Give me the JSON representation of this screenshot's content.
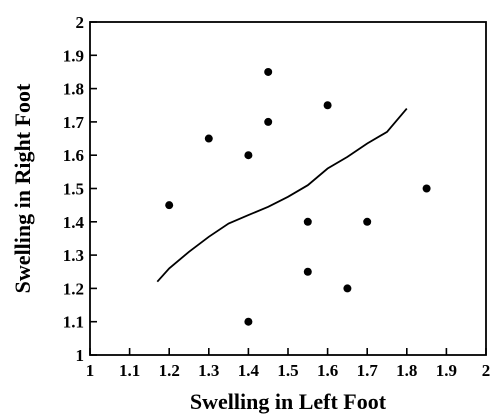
{
  "chart_data": {
    "type": "scatter",
    "title": "",
    "xlabel": "Swelling in Left Foot",
    "ylabel": "Swelling in Right Foot",
    "xlim": [
      1,
      2
    ],
    "ylim": [
      1,
      2
    ],
    "x_ticks": [
      "1",
      "1.1",
      "1.2",
      "1.3",
      "1.4",
      "1.5",
      "1.6",
      "1.7",
      "1.8",
      "1.9",
      "2"
    ],
    "y_ticks": [
      "1",
      "1.1",
      "1.2",
      "1.3",
      "1.4",
      "1.5",
      "1.6",
      "1.7",
      "1.8",
      "1.9",
      "2"
    ],
    "grid": false,
    "legend": "none",
    "series": [
      {
        "type": "scatter",
        "color": "#000000",
        "points": [
          {
            "x": 1.2,
            "y": 1.45
          },
          {
            "x": 1.3,
            "y": 1.65
          },
          {
            "x": 1.4,
            "y": 1.6
          },
          {
            "x": 1.4,
            "y": 1.1
          },
          {
            "x": 1.45,
            "y": 1.85
          },
          {
            "x": 1.45,
            "y": 1.7
          },
          {
            "x": 1.55,
            "y": 1.4
          },
          {
            "x": 1.55,
            "y": 1.25
          },
          {
            "x": 1.6,
            "y": 1.75
          },
          {
            "x": 1.65,
            "y": 1.2
          },
          {
            "x": 1.7,
            "y": 1.4
          },
          {
            "x": 1.85,
            "y": 1.5
          }
        ]
      },
      {
        "type": "line",
        "color": "#000000",
        "points": [
          {
            "x": 1.17,
            "y": 1.22
          },
          {
            "x": 1.2,
            "y": 1.26
          },
          {
            "x": 1.25,
            "y": 1.31
          },
          {
            "x": 1.3,
            "y": 1.355
          },
          {
            "x": 1.35,
            "y": 1.395
          },
          {
            "x": 1.4,
            "y": 1.42
          },
          {
            "x": 1.45,
            "y": 1.445
          },
          {
            "x": 1.5,
            "y": 1.475
          },
          {
            "x": 1.55,
            "y": 1.51
          },
          {
            "x": 1.6,
            "y": 1.56
          },
          {
            "x": 1.65,
            "y": 1.595
          },
          {
            "x": 1.7,
            "y": 1.635
          },
          {
            "x": 1.75,
            "y": 1.67
          },
          {
            "x": 1.8,
            "y": 1.74
          }
        ]
      }
    ]
  }
}
